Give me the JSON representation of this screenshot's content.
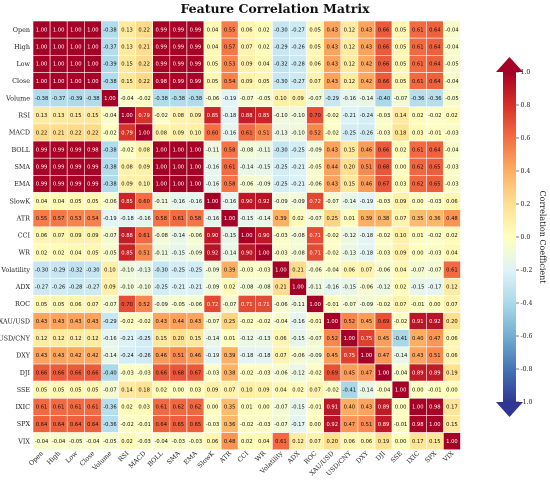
{
  "chart_data": {
    "type": "heatmap",
    "title": "Feature Correlation Matrix",
    "colorbar_label": "Correlation Coefficient",
    "colormap": "RdYlBu_r",
    "vmin": -1.0,
    "vmax": 1.0,
    "colorbar_ticks": [
      "-1.0",
      "-0.8",
      "-0.6",
      "-0.4",
      "-0.2",
      "0.0",
      "0.2",
      "0.4",
      "0.6",
      "0.8",
      "1.0"
    ],
    "variables": [
      "Open",
      "High",
      "Low",
      "Close",
      "Volume",
      "RSI",
      "MACD",
      "BOLL",
      "SMA",
      "EMA",
      "SlowK",
      "ATR",
      "CCI",
      "WR",
      "Volatility",
      "ADX",
      "ROC",
      "XAU/USD",
      "USD/CNY",
      "DXY",
      "DJI",
      "SSE",
      "IXIC",
      "SPX",
      "VIX"
    ],
    "matrix": [
      [
        1.0,
        1.0,
        1.0,
        1.0,
        -0.38,
        0.13,
        0.22,
        0.99,
        0.99,
        0.99,
        0.04,
        0.55,
        0.06,
        0.02,
        -0.3,
        -0.27,
        0.05,
        0.43,
        0.12,
        0.43,
        0.66,
        0.05,
        0.61,
        0.64,
        -0.04
      ],
      [
        1.0,
        1.0,
        1.0,
        1.0,
        -0.37,
        0.13,
        0.21,
        0.99,
        0.99,
        0.99,
        0.04,
        0.57,
        0.07,
        0.02,
        -0.29,
        -0.26,
        0.05,
        0.43,
        0.12,
        0.43,
        0.66,
        0.05,
        0.61,
        0.64,
        -0.04
      ],
      [
        1.0,
        1.0,
        1.0,
        1.0,
        -0.39,
        0.15,
        0.22,
        0.99,
        0.99,
        0.99,
        0.05,
        0.53,
        0.09,
        0.04,
        -0.32,
        -0.28,
        0.06,
        0.43,
        0.12,
        0.42,
        0.66,
        0.05,
        0.61,
        0.64,
        -0.05
      ],
      [
        1.0,
        1.0,
        1.0,
        1.0,
        -0.38,
        0.15,
        0.22,
        0.98,
        0.99,
        0.99,
        0.05,
        0.54,
        0.09,
        0.05,
        -0.3,
        -0.27,
        0.07,
        0.43,
        0.12,
        0.42,
        0.66,
        0.05,
        0.61,
        0.64,
        -0.04
      ],
      [
        -0.38,
        -0.37,
        -0.39,
        -0.38,
        1.0,
        -0.04,
        -0.02,
        -0.38,
        -0.38,
        -0.38,
        -0.06,
        -0.19,
        -0.07,
        -0.05,
        0.1,
        0.09,
        -0.07,
        -0.29,
        -0.16,
        -0.14,
        -0.4,
        -0.07,
        -0.36,
        -0.36,
        -0.05
      ],
      [
        0.13,
        0.13,
        0.15,
        0.15,
        -0.04,
        1.0,
        0.79,
        -0.02,
        0.08,
        0.09,
        0.85,
        -0.18,
        0.88,
        0.85,
        -0.1,
        -0.1,
        0.7,
        -0.02,
        -0.21,
        -0.24,
        -0.03,
        0.14,
        0.02,
        -0.02,
        0.02
      ],
      [
        0.22,
        0.21,
        0.22,
        0.22,
        -0.02,
        0.79,
        1.0,
        0.08,
        0.09,
        0.1,
        0.6,
        -0.16,
        0.61,
        0.51,
        -0.13,
        -0.1,
        0.52,
        -0.02,
        -0.25,
        -0.26,
        -0.03,
        0.18,
        0.03,
        -0.01,
        -0.03
      ],
      [
        0.99,
        0.99,
        0.99,
        0.98,
        -0.38,
        -0.02,
        0.08,
        1.0,
        1.0,
        1.0,
        -0.11,
        0.58,
        -0.08,
        -0.11,
        -0.3,
        -0.25,
        -0.09,
        0.43,
        0.15,
        0.46,
        0.66,
        0.02,
        0.61,
        0.64,
        -0.04
      ],
      [
        0.99,
        0.99,
        0.99,
        0.99,
        -0.38,
        0.08,
        0.09,
        1.0,
        1.0,
        1.0,
        -0.16,
        0.61,
        -0.14,
        -0.15,
        -0.25,
        -0.21,
        -0.05,
        0.44,
        0.2,
        0.51,
        0.68,
        -0.0,
        0.62,
        0.65,
        -0.03
      ],
      [
        0.99,
        0.99,
        0.99,
        0.99,
        -0.38,
        0.09,
        0.1,
        1.0,
        1.0,
        1.0,
        -0.16,
        0.58,
        -0.06,
        -0.09,
        -0.25,
        -0.21,
        -0.06,
        0.43,
        0.15,
        0.46,
        0.67,
        0.03,
        0.62,
        0.65,
        -0.03
      ],
      [
        0.04,
        0.04,
        0.05,
        0.05,
        -0.06,
        0.85,
        0.6,
        -0.11,
        -0.16,
        -0.16,
        1.0,
        -0.16,
        0.9,
        0.92,
        -0.09,
        -0.09,
        0.72,
        -0.07,
        -0.14,
        -0.19,
        -0.03,
        0.09,
        0.0,
        -0.03,
        0.06
      ],
      [
        0.55,
        0.57,
        0.53,
        0.54,
        -0.19,
        -0.18,
        -0.16,
        0.58,
        0.61,
        0.58,
        -0.16,
        1.0,
        -0.15,
        -0.14,
        0.39,
        0.02,
        -0.07,
        0.25,
        0.01,
        0.39,
        0.38,
        0.07,
        0.35,
        0.36,
        0.48
      ],
      [
        0.06,
        0.07,
        0.09,
        0.09,
        -0.07,
        0.88,
        0.61,
        -0.08,
        -0.14,
        -0.06,
        0.9,
        -0.15,
        1.0,
        0.9,
        -0.03,
        -0.08,
        0.71,
        -0.02,
        -0.12,
        -0.18,
        -0.02,
        0.1,
        0.01,
        -0.02,
        0.02
      ],
      [
        0.02,
        0.02,
        0.04,
        0.05,
        -0.05,
        0.85,
        0.51,
        -0.11,
        -0.15,
        -0.09,
        0.92,
        -0.14,
        0.9,
        1.0,
        -0.03,
        -0.08,
        0.71,
        -0.02,
        -0.13,
        -0.18,
        -0.03,
        0.09,
        0.0,
        -0.03,
        0.04
      ],
      [
        -0.3,
        -0.29,
        -0.32,
        -0.3,
        0.1,
        -0.1,
        -0.13,
        -0.3,
        -0.25,
        -0.25,
        -0.09,
        0.39,
        -0.03,
        -0.03,
        1.0,
        0.21,
        -0.06,
        -0.04,
        0.06,
        0.07,
        -0.06,
        0.04,
        -0.07,
        -0.07,
        0.61
      ],
      [
        -0.27,
        -0.26,
        -0.28,
        -0.27,
        0.09,
        -0.1,
        -0.1,
        -0.25,
        -0.21,
        -0.21,
        -0.09,
        0.02,
        -0.08,
        -0.08,
        0.21,
        1.0,
        -0.11,
        -0.16,
        -0.15,
        -0.06,
        -0.12,
        0.02,
        -0.15,
        -0.17,
        0.12
      ],
      [
        0.05,
        0.05,
        0.06,
        0.07,
        -0.07,
        0.7,
        0.52,
        -0.09,
        -0.05,
        -0.06,
        0.72,
        -0.07,
        0.71,
        0.71,
        -0.06,
        -0.11,
        1.0,
        -0.01,
        -0.07,
        -0.09,
        -0.02,
        0.07,
        -0.01,
        -0.0,
        0.07
      ],
      [
        0.43,
        0.43,
        0.43,
        0.43,
        -0.29,
        -0.02,
        -0.02,
        0.43,
        0.44,
        0.43,
        -0.07,
        0.25,
        -0.02,
        -0.02,
        -0.04,
        -0.16,
        -0.01,
        1.0,
        0.52,
        0.45,
        0.69,
        -0.02,
        0.91,
        0.92,
        0.2
      ],
      [
        0.12,
        0.12,
        0.12,
        0.12,
        -0.16,
        -0.21,
        -0.25,
        0.15,
        0.2,
        0.15,
        -0.14,
        0.01,
        -0.12,
        -0.13,
        0.06,
        -0.15,
        -0.07,
        0.52,
        1.0,
        0.75,
        0.45,
        -0.41,
        0.4,
        0.47,
        0.06
      ],
      [
        0.43,
        0.43,
        0.42,
        0.42,
        -0.14,
        -0.24,
        -0.26,
        0.46,
        0.51,
        0.46,
        -0.19,
        0.39,
        -0.18,
        -0.18,
        0.07,
        -0.06,
        -0.09,
        0.45,
        0.75,
        1.0,
        0.47,
        -0.14,
        0.43,
        0.51,
        0.06
      ],
      [
        0.66,
        0.66,
        0.66,
        0.66,
        -0.4,
        -0.03,
        -0.03,
        0.66,
        0.68,
        0.67,
        -0.03,
        0.38,
        -0.02,
        -0.03,
        -0.06,
        -0.12,
        -0.02,
        0.69,
        0.45,
        0.47,
        1.0,
        -0.04,
        0.89,
        0.89,
        0.19
      ],
      [
        0.05,
        0.05,
        0.05,
        0.05,
        -0.07,
        0.14,
        0.18,
        0.02,
        -0.0,
        0.03,
        0.09,
        0.07,
        0.1,
        0.09,
        0.04,
        0.02,
        0.07,
        -0.02,
        -0.41,
        -0.14,
        -0.04,
        1.0,
        0.0,
        -0.01,
        0.0
      ],
      [
        0.61,
        0.61,
        0.61,
        0.61,
        -0.36,
        0.02,
        0.03,
        0.61,
        0.62,
        0.62,
        0.0,
        0.35,
        0.01,
        0.0,
        -0.07,
        -0.15,
        -0.01,
        0.91,
        0.4,
        0.43,
        0.89,
        0.0,
        1.0,
        0.98,
        0.17
      ],
      [
        0.64,
        0.64,
        0.64,
        0.64,
        -0.36,
        -0.02,
        -0.01,
        0.64,
        0.65,
        0.65,
        -0.03,
        0.36,
        -0.02,
        -0.03,
        -0.07,
        -0.17,
        -0.0,
        0.92,
        0.47,
        0.51,
        0.89,
        -0.01,
        0.98,
        1.0,
        0.15
      ],
      [
        -0.04,
        -0.04,
        -0.05,
        -0.04,
        -0.05,
        0.02,
        -0.03,
        -0.04,
        -0.03,
        -0.03,
        0.06,
        0.48,
        0.02,
        0.04,
        0.61,
        0.12,
        0.07,
        0.2,
        0.06,
        0.06,
        0.19,
        0.0,
        0.17,
        0.15,
        1.0
      ]
    ]
  }
}
